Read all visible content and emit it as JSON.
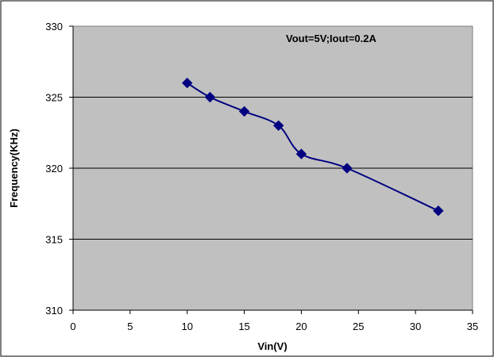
{
  "chart_data": {
    "type": "line",
    "title": "",
    "xlabel": "Vin(V)",
    "ylabel": "Frequency(KHz)",
    "xlim": [
      0,
      35
    ],
    "ylim": [
      310,
      330
    ],
    "xticks": [
      0,
      5,
      10,
      15,
      20,
      25,
      30,
      35
    ],
    "yticks": [
      310,
      315,
      320,
      325,
      330
    ],
    "grid": "horizontal",
    "legend": "none",
    "annotation": "Vout=5V;Iout=0.2A",
    "colors": {
      "plot_background": "#c0c0c0",
      "series": "#000080",
      "gridline": "#000000"
    },
    "series": [
      {
        "marker": "diamond",
        "smooth": true,
        "x": [
          10,
          12,
          15,
          18,
          20,
          24,
          32
        ],
        "y": [
          326,
          325,
          324,
          323,
          321,
          320,
          317
        ]
      }
    ]
  }
}
